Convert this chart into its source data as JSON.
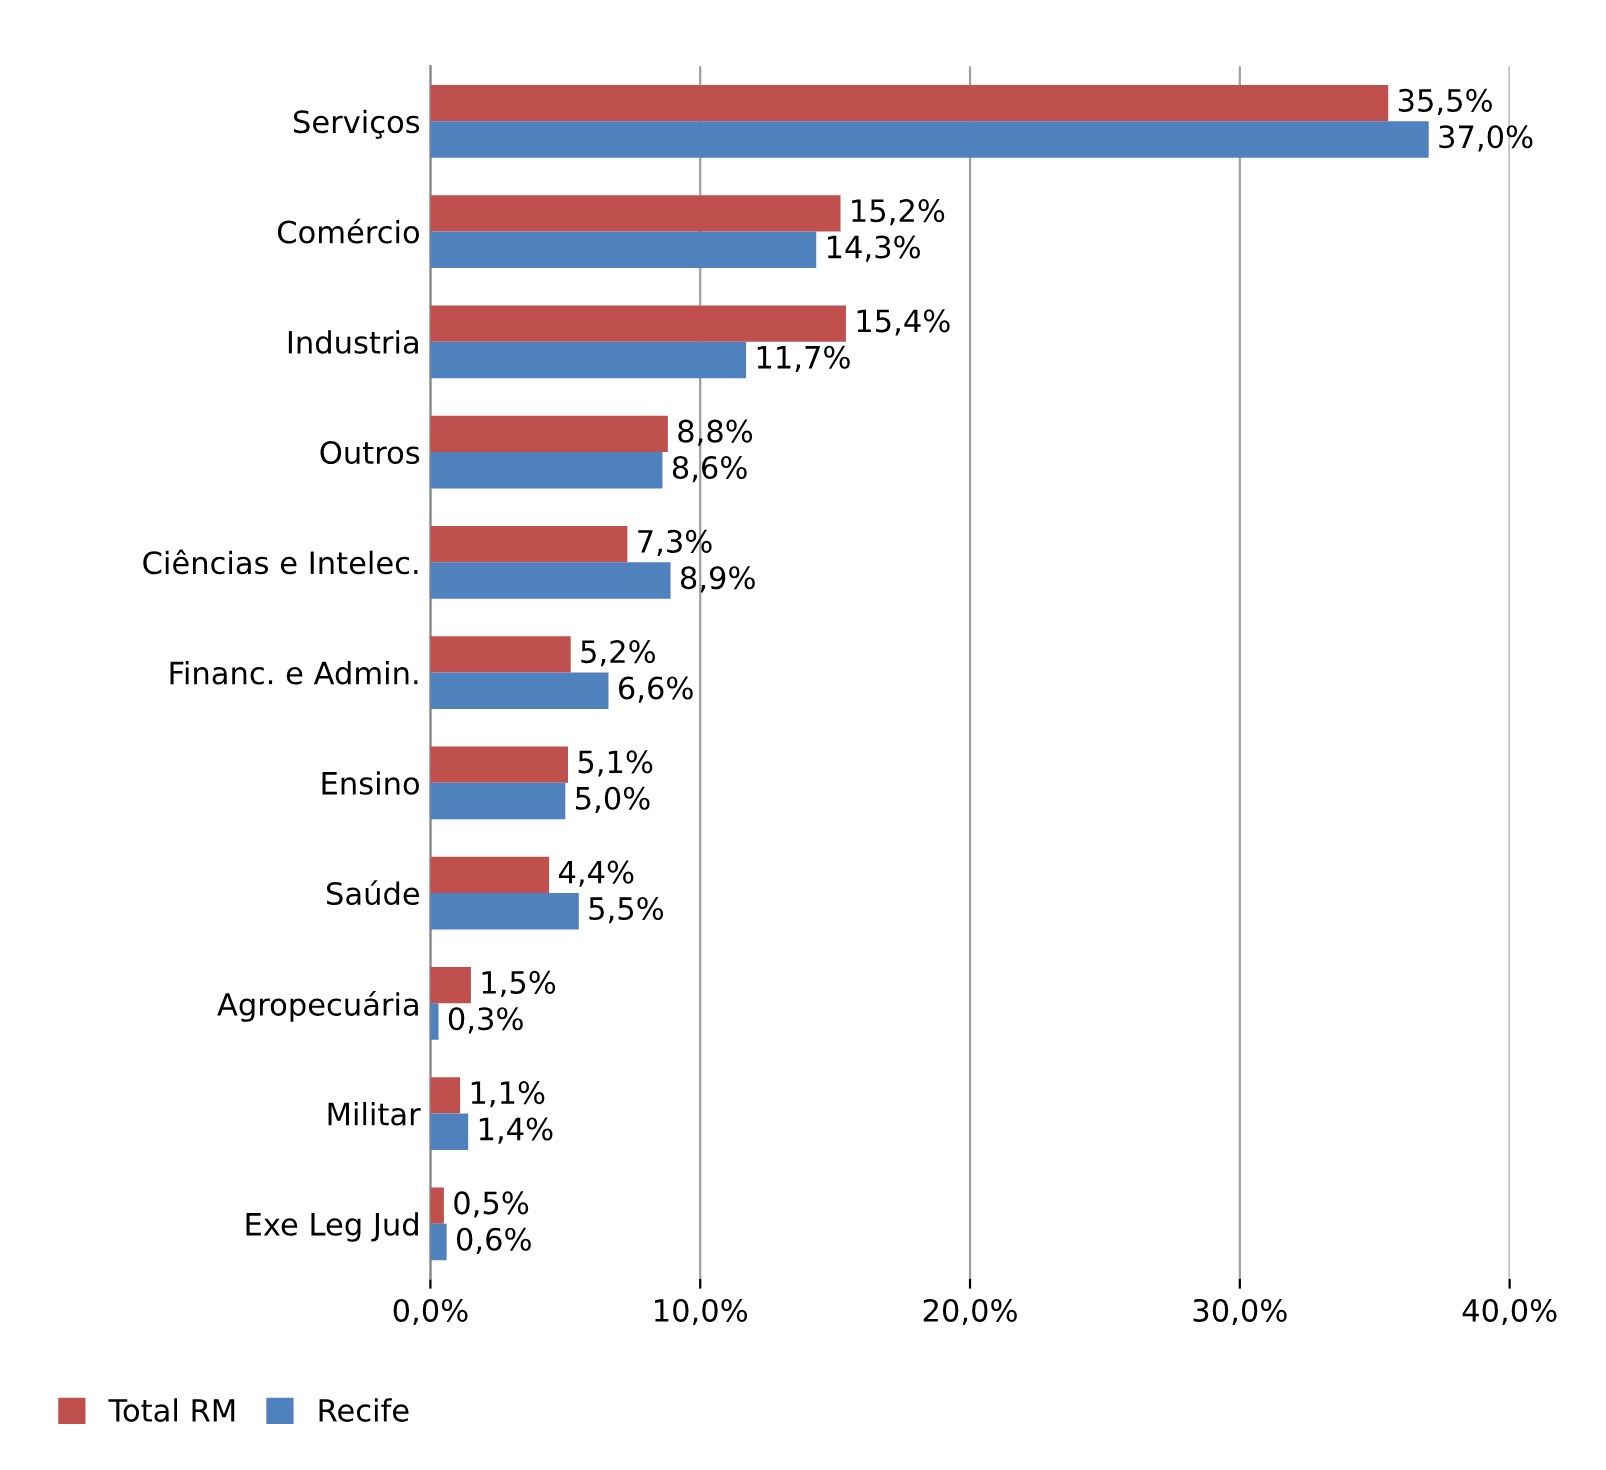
{
  "chart_data": {
    "type": "bar",
    "orientation": "horizontal",
    "categories": [
      "Serviços",
      "Comércio",
      "Industria",
      "Outros",
      "Ciências e Intelec.",
      "Financ. e Admin.",
      "Ensino",
      "Saúde",
      "Agropecuária",
      "Militar",
      "Exe Leg Jud"
    ],
    "series": [
      {
        "name": "Total RM",
        "color": "#c0504d",
        "values": [
          35.5,
          15.2,
          15.4,
          8.8,
          7.3,
          5.2,
          5.1,
          4.4,
          1.5,
          1.1,
          0.5
        ],
        "value_labels": [
          "35,5%",
          "15,2%",
          "15,4%",
          "8,8%",
          "7,3%",
          "5,2%",
          "5,1%",
          "4,4%",
          "1,5%",
          "1,1%",
          "0,5%"
        ]
      },
      {
        "name": "Recife",
        "color": "#4f81bd",
        "values": [
          37.0,
          14.3,
          11.7,
          8.6,
          8.9,
          6.6,
          5.0,
          5.5,
          0.3,
          1.4,
          0.6
        ],
        "value_labels": [
          "37,0%",
          "14,3%",
          "11,7%",
          "8,6%",
          "8,9%",
          "6,6%",
          "5,0%",
          "5,5%",
          "0,3%",
          "1,4%",
          "0,6%"
        ]
      }
    ],
    "xlim": [
      0,
      40
    ],
    "xticks": [
      {
        "value": 0,
        "label": "0,0%"
      },
      {
        "value": 10,
        "label": "10,0%"
      },
      {
        "value": 20,
        "label": "20,0%"
      },
      {
        "value": 30,
        "label": "30,0%"
      },
      {
        "value": 40,
        "label": "40,0%"
      }
    ],
    "grid": "x",
    "legend": "bottom left"
  }
}
